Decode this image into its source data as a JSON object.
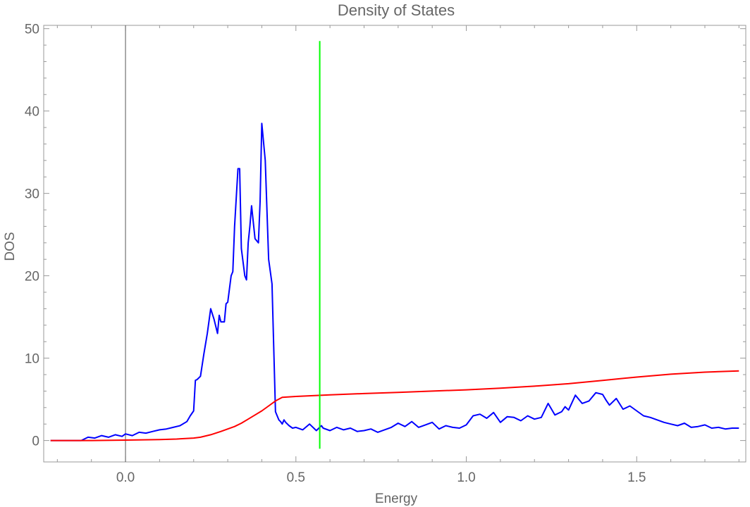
{
  "chart_data": {
    "type": "line",
    "title": "Density of States",
    "xlabel": "Energy",
    "ylabel": "DOS",
    "xlim": [
      -0.24,
      1.82
    ],
    "ylim": [
      -2.6,
      50.4
    ],
    "x_ticks_major": [
      0.0,
      0.5,
      1.0,
      1.5
    ],
    "x_tick_labels": [
      "0.0",
      "0.5",
      "1.0",
      "1.5"
    ],
    "y_ticks_major": [
      0,
      10,
      20,
      30,
      40,
      50
    ],
    "y_tick_labels": [
      "0",
      "10",
      "20",
      "30",
      "40",
      "50"
    ],
    "grid": false,
    "legend": "none",
    "series": [
      {
        "color": "#0000ff",
        "x": [
          -0.22,
          -0.13,
          -0.11,
          -0.09,
          -0.07,
          -0.05,
          -0.03,
          -0.01,
          0.0,
          0.02,
          0.04,
          0.06,
          0.08,
          0.1,
          0.12,
          0.14,
          0.16,
          0.18,
          0.19,
          0.2,
          0.205,
          0.21,
          0.22,
          0.23,
          0.24,
          0.25,
          0.26,
          0.27,
          0.275,
          0.28,
          0.29,
          0.295,
          0.3,
          0.31,
          0.315,
          0.32,
          0.33,
          0.335,
          0.34,
          0.35,
          0.355,
          0.36,
          0.365,
          0.37,
          0.38,
          0.39,
          0.395,
          0.4,
          0.41,
          0.42,
          0.43,
          0.44,
          0.445,
          0.45,
          0.455,
          0.46,
          0.465,
          0.47,
          0.48,
          0.49,
          0.5,
          0.52,
          0.54,
          0.56,
          0.575,
          0.58,
          0.6,
          0.62,
          0.64,
          0.66,
          0.68,
          0.7,
          0.72,
          0.74,
          0.76,
          0.78,
          0.8,
          0.82,
          0.84,
          0.86,
          0.88,
          0.9,
          0.92,
          0.94,
          0.96,
          0.98,
          1.0,
          1.02,
          1.04,
          1.06,
          1.08,
          1.1,
          1.12,
          1.14,
          1.16,
          1.18,
          1.2,
          1.22,
          1.24,
          1.26,
          1.28,
          1.29,
          1.3,
          1.32,
          1.34,
          1.36,
          1.38,
          1.4,
          1.41,
          1.42,
          1.44,
          1.46,
          1.48,
          1.5,
          1.52,
          1.54,
          1.56,
          1.58,
          1.6,
          1.62,
          1.64,
          1.66,
          1.68,
          1.7,
          1.72,
          1.74,
          1.76,
          1.78,
          1.8
        ],
        "y": [
          0.0,
          0.0,
          0.4,
          0.3,
          0.6,
          0.4,
          0.7,
          0.5,
          0.8,
          0.6,
          1.0,
          0.9,
          1.1,
          1.3,
          1.4,
          1.6,
          1.8,
          2.3,
          3.0,
          3.6,
          7.3,
          7.4,
          7.8,
          10.5,
          13.0,
          16.0,
          14.7,
          13.0,
          15.2,
          14.4,
          14.4,
          16.6,
          16.8,
          20.0,
          20.5,
          26.0,
          33.0,
          33.0,
          23.3,
          20.0,
          19.5,
          24.0,
          26.0,
          28.5,
          24.5,
          24.0,
          29.0,
          38.5,
          34.0,
          22.0,
          19.0,
          3.5,
          3.0,
          2.5,
          2.3,
          2.0,
          2.5,
          2.2,
          1.8,
          1.5,
          1.6,
          1.3,
          2.0,
          1.2,
          1.8,
          1.5,
          1.2,
          1.6,
          1.3,
          1.5,
          1.1,
          1.2,
          1.4,
          1.0,
          1.3,
          1.6,
          2.1,
          1.7,
          2.3,
          1.6,
          1.9,
          2.2,
          1.4,
          1.8,
          1.6,
          1.5,
          1.9,
          3.0,
          3.2,
          2.7,
          3.4,
          2.2,
          2.9,
          2.8,
          2.4,
          3.0,
          2.6,
          2.8,
          4.5,
          3.1,
          3.5,
          4.1,
          3.7,
          5.5,
          4.5,
          4.8,
          5.8,
          5.6,
          4.9,
          4.3,
          5.1,
          3.8,
          4.2,
          3.6,
          3.0,
          2.8,
          2.5,
          2.2,
          2.0,
          1.8,
          2.1,
          1.6,
          1.7,
          1.9,
          1.5,
          1.6,
          1.4,
          1.5,
          1.5
        ]
      },
      {
        "color": "#ff0000",
        "x": [
          -0.22,
          -0.1,
          0.0,
          0.1,
          0.15,
          0.2,
          0.22,
          0.25,
          0.28,
          0.3,
          0.32,
          0.34,
          0.36,
          0.38,
          0.4,
          0.42,
          0.44,
          0.46,
          0.48,
          0.5,
          0.6,
          0.7,
          0.8,
          0.9,
          1.0,
          1.1,
          1.2,
          1.3,
          1.4,
          1.5,
          1.6,
          1.7,
          1.8
        ],
        "y": [
          0.0,
          0.0,
          0.05,
          0.12,
          0.18,
          0.3,
          0.4,
          0.7,
          1.1,
          1.4,
          1.7,
          2.1,
          2.6,
          3.1,
          3.6,
          4.2,
          4.8,
          5.25,
          5.3,
          5.35,
          5.55,
          5.7,
          5.85,
          6.0,
          6.15,
          6.35,
          6.6,
          6.9,
          7.3,
          7.7,
          8.05,
          8.3,
          8.45
        ]
      },
      {
        "color": "#00ff00",
        "x": [
          0.57,
          0.57
        ],
        "y": [
          -1.0,
          48.5
        ]
      }
    ]
  }
}
